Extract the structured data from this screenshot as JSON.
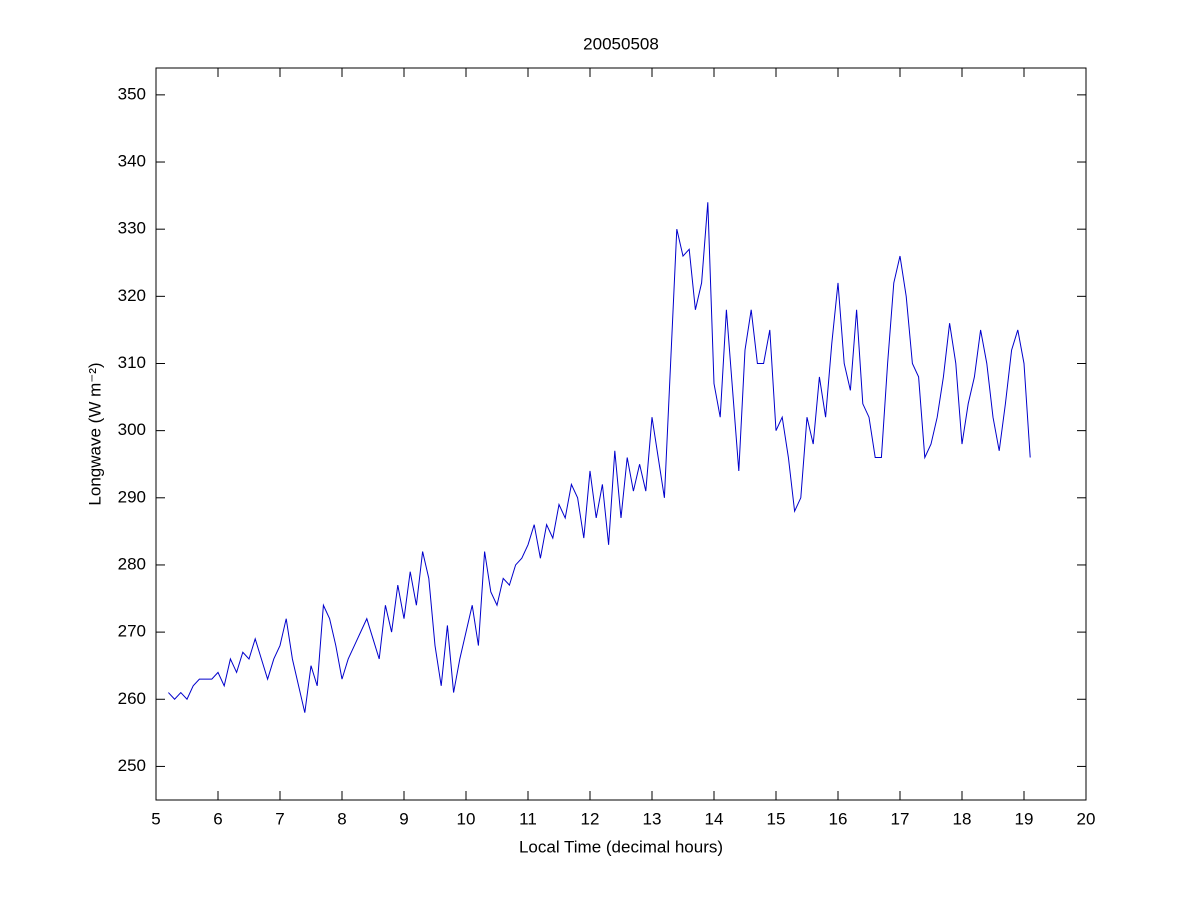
{
  "chart_data": {
    "type": "line",
    "title": "20050508",
    "xlabel": "Local Time (decimal hours)",
    "ylabel": "Longwave (W m⁻²)",
    "xlim": [
      5,
      20
    ],
    "xticks": [
      5,
      6,
      7,
      8,
      9,
      10,
      11,
      12,
      13,
      14,
      15,
      16,
      17,
      18,
      19,
      20
    ],
    "ylim": [
      245,
      354
    ],
    "yticks": [
      250,
      260,
      270,
      280,
      290,
      300,
      310,
      320,
      330,
      340,
      350
    ],
    "grid": false,
    "x": [
      5.2,
      5.3,
      5.4,
      5.5,
      5.6,
      5.7,
      5.8,
      5.9,
      6.0,
      6.1,
      6.2,
      6.3,
      6.4,
      6.5,
      6.6,
      6.7,
      6.8,
      6.9,
      7.0,
      7.1,
      7.2,
      7.3,
      7.4,
      7.5,
      7.6,
      7.7,
      7.8,
      7.9,
      8.0,
      8.1,
      8.2,
      8.3,
      8.4,
      8.5,
      8.6,
      8.7,
      8.8,
      8.9,
      9.0,
      9.1,
      9.2,
      9.3,
      9.4,
      9.5,
      9.6,
      9.7,
      9.8,
      9.9,
      10.0,
      10.1,
      10.2,
      10.3,
      10.4,
      10.5,
      10.6,
      10.7,
      10.8,
      10.9,
      11.0,
      11.1,
      11.2,
      11.3,
      11.4,
      11.5,
      11.6,
      11.7,
      11.8,
      11.9,
      12.0,
      12.1,
      12.2,
      12.3,
      12.4,
      12.5,
      12.6,
      12.7,
      12.8,
      12.9,
      13.0,
      13.1,
      13.2,
      13.3,
      13.4,
      13.5,
      13.6,
      13.7,
      13.8,
      13.9,
      14.0,
      14.1,
      14.2,
      14.3,
      14.4,
      14.5,
      14.6,
      14.7,
      14.8,
      14.9,
      15.0,
      15.1,
      15.2,
      15.3,
      15.4,
      15.5,
      15.6,
      15.7,
      15.8,
      15.9,
      16.0,
      16.1,
      16.2,
      16.3,
      16.4,
      16.5,
      16.6,
      16.7,
      16.8,
      16.9,
      17.0,
      17.1,
      17.2,
      17.3,
      17.4,
      17.5,
      17.6,
      17.7,
      17.8,
      17.9,
      18.0,
      18.1,
      18.2,
      18.3,
      18.4,
      18.5,
      18.6,
      18.7,
      18.8,
      18.9,
      19.0,
      19.1
    ],
    "series": [
      {
        "name": "Longwave",
        "color": "#0000cc",
        "values": [
          261,
          260,
          261,
          260,
          262,
          263,
          263,
          263,
          264,
          262,
          266,
          264,
          267,
          266,
          269,
          266,
          263,
          266,
          268,
          272,
          266,
          262,
          258,
          265,
          262,
          274,
          272,
          268,
          263,
          266,
          268,
          270,
          272,
          269,
          266,
          274,
          270,
          277,
          272,
          279,
          274,
          282,
          278,
          268,
          262,
          271,
          261,
          266,
          270,
          274,
          268,
          282,
          276,
          274,
          278,
          277,
          280,
          281,
          283,
          286,
          281,
          286,
          284,
          289,
          287,
          292,
          290,
          284,
          294,
          287,
          292,
          283,
          297,
          287,
          296,
          291,
          295,
          291,
          302,
          296,
          290,
          310,
          330,
          326,
          327,
          318,
          322,
          334,
          307,
          302,
          318,
          306,
          294,
          312,
          318,
          310,
          310,
          315,
          300,
          302,
          296,
          288,
          290,
          302,
          298,
          308,
          302,
          313,
          322,
          310,
          306,
          318,
          304,
          302,
          296,
          296,
          310,
          322,
          326,
          320,
          310,
          308,
          296,
          298,
          302,
          308,
          316,
          310,
          298,
          304,
          308,
          315,
          310,
          302,
          297,
          304,
          312,
          315,
          310,
          296
        ]
      }
    ]
  }
}
